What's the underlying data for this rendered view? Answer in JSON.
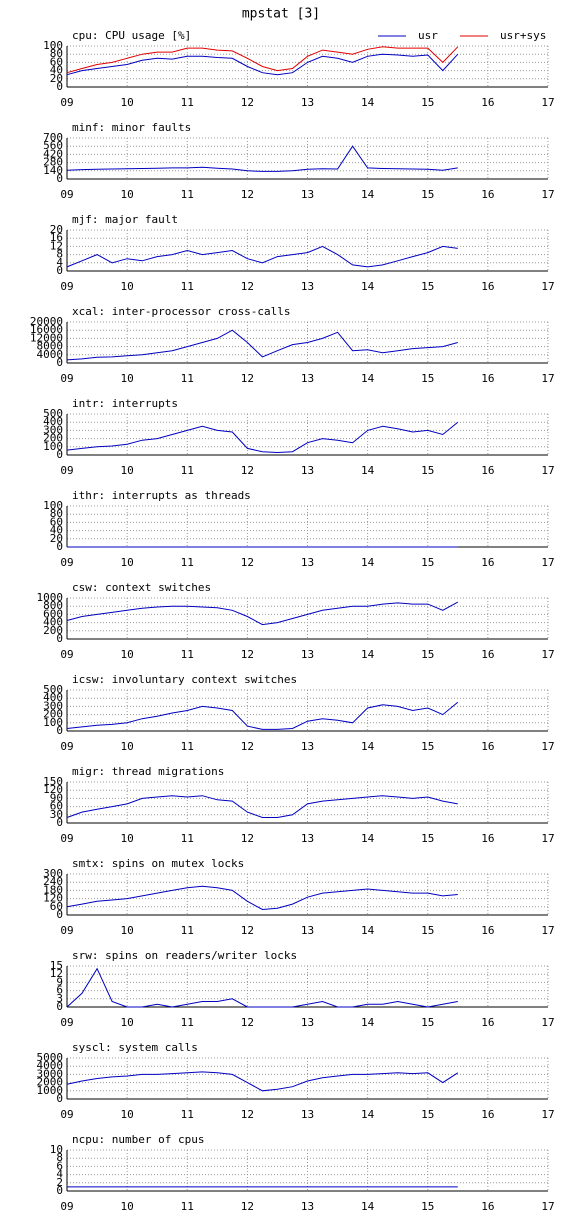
{
  "title": "mpstat [3]",
  "chart_data": [
    {
      "type": "line",
      "title": "cpu: CPU usage [%]",
      "legend": "upper right",
      "grid": true,
      "x": [
        9,
        9.25,
        9.5,
        9.75,
        10,
        10.25,
        10.5,
        10.75,
        11,
        11.25,
        11.5,
        11.75,
        12,
        12.25,
        12.5,
        12.75,
        13,
        13.25,
        13.5,
        13.75,
        14,
        14.25,
        14.5,
        14.75,
        15,
        15.25,
        15.5
      ],
      "series": [
        {
          "name": "usr",
          "color": "#0000c0",
          "values": [
            30,
            40,
            45,
            50,
            55,
            65,
            70,
            68,
            75,
            75,
            72,
            70,
            50,
            35,
            30,
            35,
            60,
            75,
            70,
            60,
            75,
            80,
            78,
            75,
            78,
            40,
            80
          ]
        },
        {
          "name": "usr+sys",
          "color": "#e00000",
          "values": [
            35,
            45,
            55,
            60,
            70,
            80,
            85,
            85,
            95,
            95,
            90,
            88,
            70,
            50,
            40,
            45,
            75,
            90,
            85,
            80,
            92,
            98,
            95,
            95,
            95,
            60,
            98
          ]
        }
      ],
      "xlim": [
        9,
        17
      ],
      "xticks": [
        {
          "value": 9,
          "label": "09"
        },
        10,
        11,
        12,
        13,
        14,
        15,
        16,
        17
      ],
      "ylim": [
        0,
        100
      ],
      "yticks": [
        0,
        20,
        40,
        60,
        80,
        100
      ]
    },
    {
      "type": "line",
      "title": "minf: minor faults",
      "grid": true,
      "color": "#0000c0",
      "x": [
        9,
        9.25,
        9.5,
        9.75,
        10,
        10.25,
        10.5,
        10.75,
        11,
        11.25,
        11.5,
        11.75,
        12,
        12.25,
        12.5,
        12.75,
        13,
        13.25,
        13.5,
        13.75,
        14,
        14.25,
        14.5,
        14.75,
        15,
        15.25,
        15.5
      ],
      "values": [
        150,
        160,
        165,
        170,
        175,
        180,
        185,
        190,
        190,
        200,
        185,
        170,
        140,
        130,
        130,
        140,
        165,
        175,
        170,
        560,
        190,
        180,
        175,
        170,
        165,
        150,
        190
      ],
      "xlim": [
        9,
        17
      ],
      "xticks": [
        {
          "value": 9,
          "label": "09"
        },
        10,
        11,
        12,
        13,
        14,
        15,
        16,
        17
      ],
      "ylim": [
        0,
        700
      ],
      "yticks": [
        0,
        140,
        280,
        420,
        560,
        700
      ]
    },
    {
      "type": "line",
      "title": "mjf: major fault",
      "grid": true,
      "color": "#0000c0",
      "x": [
        9,
        9.25,
        9.5,
        9.75,
        10,
        10.25,
        10.5,
        10.75,
        11,
        11.25,
        11.5,
        11.75,
        12,
        12.25,
        12.5,
        12.75,
        13,
        13.25,
        13.5,
        13.75,
        14,
        14.25,
        14.5,
        14.75,
        15,
        15.25,
        15.5
      ],
      "values": [
        2,
        5,
        8,
        4,
        6,
        5,
        7,
        8,
        10,
        8,
        9,
        10,
        6,
        4,
        7,
        8,
        9,
        12,
        8,
        3,
        2,
        3,
        5,
        7,
        9,
        12,
        11
      ],
      "xlim": [
        9,
        17
      ],
      "xticks": [
        {
          "value": 9,
          "label": "09"
        },
        10,
        11,
        12,
        13,
        14,
        15,
        16,
        17
      ],
      "ylim": [
        0,
        20
      ],
      "yticks": [
        0,
        4,
        8,
        12,
        16,
        20
      ]
    },
    {
      "type": "line",
      "title": "xcal: inter-processor cross-calls",
      "grid": true,
      "color": "#0000c0",
      "x": [
        9,
        9.25,
        9.5,
        9.75,
        10,
        10.25,
        10.5,
        10.75,
        11,
        11.25,
        11.5,
        11.75,
        12,
        12.25,
        12.5,
        12.75,
        13,
        13.25,
        13.5,
        13.75,
        14,
        14.25,
        14.5,
        14.75,
        15,
        15.25,
        15.5
      ],
      "values": [
        1500,
        2000,
        2800,
        3000,
        3500,
        4000,
        5000,
        6000,
        8000,
        10000,
        12000,
        16000,
        10000,
        3000,
        6000,
        9000,
        10000,
        12000,
        15000,
        6000,
        6500,
        5000,
        6000,
        7000,
        7500,
        8000,
        10000
      ],
      "xlim": [
        9,
        17
      ],
      "xticks": [
        {
          "value": 9,
          "label": "09"
        },
        10,
        11,
        12,
        13,
        14,
        15,
        16,
        17
      ],
      "ylim": [
        0,
        20000
      ],
      "yticks": [
        0,
        4000,
        8000,
        12000,
        16000,
        20000
      ]
    },
    {
      "type": "line",
      "title": "intr: interrupts",
      "grid": true,
      "color": "#0000c0",
      "x": [
        9,
        9.25,
        9.5,
        9.75,
        10,
        10.25,
        10.5,
        10.75,
        11,
        11.25,
        11.5,
        11.75,
        12,
        12.25,
        12.5,
        12.75,
        13,
        13.25,
        13.5,
        13.75,
        14,
        14.25,
        14.5,
        14.75,
        15,
        15.25,
        15.5
      ],
      "values": [
        60,
        80,
        100,
        110,
        130,
        180,
        200,
        250,
        300,
        350,
        300,
        280,
        80,
        40,
        30,
        40,
        150,
        200,
        180,
        150,
        300,
        350,
        320,
        280,
        300,
        250,
        400
      ],
      "xlim": [
        9,
        17
      ],
      "xticks": [
        {
          "value": 9,
          "label": "09"
        },
        10,
        11,
        12,
        13,
        14,
        15,
        16,
        17
      ],
      "ylim": [
        0,
        500
      ],
      "yticks": [
        0,
        100,
        200,
        300,
        400,
        500
      ]
    },
    {
      "type": "line",
      "title": "ithr: interrupts as threads",
      "grid": true,
      "color": "#0000c0",
      "x": [
        9,
        9.25,
        9.5,
        9.75,
        10,
        10.25,
        10.5,
        10.75,
        11,
        11.25,
        11.5,
        11.75,
        12,
        12.25,
        12.5,
        12.75,
        13,
        13.25,
        13.5,
        13.75,
        14,
        14.25,
        14.5,
        14.75,
        15,
        15.25,
        15.5
      ],
      "values": [
        0,
        0,
        0,
        0,
        0,
        0,
        0,
        0,
        0,
        0,
        0,
        0,
        0,
        0,
        0,
        0,
        0,
        0,
        0,
        0,
        0,
        0,
        0,
        0,
        0,
        0,
        0
      ],
      "xlim": [
        9,
        17
      ],
      "xticks": [
        {
          "value": 9,
          "label": "09"
        },
        10,
        11,
        12,
        13,
        14,
        15,
        16,
        17
      ],
      "ylim": [
        0,
        100
      ],
      "yticks": [
        0,
        20,
        40,
        60,
        80,
        100
      ]
    },
    {
      "type": "line",
      "title": "csw: context switches",
      "grid": true,
      "color": "#0000c0",
      "x": [
        9,
        9.25,
        9.5,
        9.75,
        10,
        10.25,
        10.5,
        10.75,
        11,
        11.25,
        11.5,
        11.75,
        12,
        12.25,
        12.5,
        12.75,
        13,
        13.25,
        13.5,
        13.75,
        14,
        14.25,
        14.5,
        14.75,
        15,
        15.25,
        15.5
      ],
      "values": [
        450,
        550,
        600,
        650,
        700,
        750,
        780,
        800,
        800,
        780,
        760,
        700,
        550,
        350,
        400,
        500,
        600,
        700,
        750,
        800,
        800,
        850,
        880,
        850,
        850,
        700,
        900
      ],
      "xlim": [
        9,
        17
      ],
      "xticks": [
        {
          "value": 9,
          "label": "09"
        },
        10,
        11,
        12,
        13,
        14,
        15,
        16,
        17
      ],
      "ylim": [
        0,
        1000
      ],
      "yticks": [
        0,
        200,
        400,
        600,
        800,
        1000
      ]
    },
    {
      "type": "line",
      "title": "icsw: involuntary context switches",
      "grid": true,
      "color": "#0000c0",
      "x": [
        9,
        9.25,
        9.5,
        9.75,
        10,
        10.25,
        10.5,
        10.75,
        11,
        11.25,
        11.5,
        11.75,
        12,
        12.25,
        12.5,
        12.75,
        13,
        13.25,
        13.5,
        13.75,
        14,
        14.25,
        14.5,
        14.75,
        15,
        15.25,
        15.5
      ],
      "values": [
        30,
        50,
        70,
        80,
        100,
        150,
        180,
        220,
        250,
        300,
        280,
        250,
        60,
        20,
        20,
        30,
        120,
        150,
        130,
        100,
        280,
        320,
        300,
        250,
        280,
        200,
        350
      ],
      "xlim": [
        9,
        17
      ],
      "xticks": [
        {
          "value": 9,
          "label": "09"
        },
        10,
        11,
        12,
        13,
        14,
        15,
        16,
        17
      ],
      "ylim": [
        0,
        500
      ],
      "yticks": [
        0,
        100,
        200,
        300,
        400,
        500
      ]
    },
    {
      "type": "line",
      "title": "migr: thread migrations",
      "grid": true,
      "color": "#0000c0",
      "x": [
        9,
        9.25,
        9.5,
        9.75,
        10,
        10.25,
        10.5,
        10.75,
        11,
        11.25,
        11.5,
        11.75,
        12,
        12.25,
        12.5,
        12.75,
        13,
        13.25,
        13.5,
        13.75,
        14,
        14.25,
        14.5,
        14.75,
        15,
        15.25,
        15.5
      ],
      "values": [
        20,
        40,
        50,
        60,
        70,
        90,
        95,
        100,
        95,
        100,
        85,
        80,
        40,
        20,
        20,
        30,
        70,
        80,
        85,
        90,
        95,
        100,
        95,
        90,
        95,
        80,
        70
      ],
      "xlim": [
        9,
        17
      ],
      "xticks": [
        {
          "value": 9,
          "label": "09"
        },
        10,
        11,
        12,
        13,
        14,
        15,
        16,
        17
      ],
      "ylim": [
        0,
        150
      ],
      "yticks": [
        0,
        30,
        60,
        90,
        120,
        150
      ]
    },
    {
      "type": "line",
      "title": "smtx: spins on mutex locks",
      "grid": true,
      "color": "#0000c0",
      "x": [
        9,
        9.25,
        9.5,
        9.75,
        10,
        10.25,
        10.5,
        10.75,
        11,
        11.25,
        11.5,
        11.75,
        12,
        12.25,
        12.5,
        12.75,
        13,
        13.25,
        13.5,
        13.75,
        14,
        14.25,
        14.5,
        14.75,
        15,
        15.25,
        15.5
      ],
      "values": [
        60,
        80,
        100,
        110,
        120,
        140,
        160,
        180,
        200,
        210,
        200,
        180,
        100,
        40,
        50,
        80,
        130,
        160,
        170,
        180,
        190,
        180,
        170,
        160,
        160,
        140,
        150
      ],
      "xlim": [
        9,
        17
      ],
      "xticks": [
        {
          "value": 9,
          "label": "09"
        },
        10,
        11,
        12,
        13,
        14,
        15,
        16,
        17
      ],
      "ylim": [
        0,
        300
      ],
      "yticks": [
        0,
        60,
        120,
        180,
        240,
        300
      ]
    },
    {
      "type": "line",
      "title": "srw: spins on readers/writer locks",
      "grid": true,
      "color": "#0000c0",
      "x": [
        9,
        9.25,
        9.5,
        9.75,
        10,
        10.25,
        10.5,
        10.75,
        11,
        11.25,
        11.5,
        11.75,
        12,
        12.25,
        12.5,
        12.75,
        13,
        13.25,
        13.5,
        13.75,
        14,
        14.25,
        14.5,
        14.75,
        15,
        15.25,
        15.5
      ],
      "values": [
        0,
        5,
        14,
        2,
        0,
        0,
        1,
        0,
        1,
        2,
        2,
        3,
        0,
        0,
        0,
        0,
        1,
        2,
        0,
        0,
        1,
        1,
        2,
        1,
        0,
        1,
        2
      ],
      "xlim": [
        9,
        17
      ],
      "xticks": [
        {
          "value": 9,
          "label": "09"
        },
        10,
        11,
        12,
        13,
        14,
        15,
        16,
        17
      ],
      "ylim": [
        0,
        15
      ],
      "yticks": [
        0,
        3,
        6,
        9,
        12,
        15
      ]
    },
    {
      "type": "line",
      "title": "syscl: system calls",
      "grid": true,
      "color": "#0000c0",
      "x": [
        9,
        9.25,
        9.5,
        9.75,
        10,
        10.25,
        10.5,
        10.75,
        11,
        11.25,
        11.5,
        11.75,
        12,
        12.25,
        12.5,
        12.75,
        13,
        13.25,
        13.5,
        13.75,
        14,
        14.25,
        14.5,
        14.75,
        15,
        15.25,
        15.5
      ],
      "values": [
        1800,
        2200,
        2500,
        2700,
        2800,
        3000,
        3000,
        3100,
        3200,
        3300,
        3200,
        3000,
        2000,
        1000,
        1200,
        1500,
        2200,
        2600,
        2800,
        3000,
        3000,
        3100,
        3200,
        3100,
        3200,
        2000,
        3200
      ],
      "xlim": [
        9,
        17
      ],
      "xticks": [
        {
          "value": 9,
          "label": "09"
        },
        10,
        11,
        12,
        13,
        14,
        15,
        16,
        17
      ],
      "ylim": [
        0,
        5000
      ],
      "yticks": [
        0,
        1000,
        2000,
        3000,
        4000,
        5000
      ]
    },
    {
      "type": "line",
      "title": "ncpu: number of cpus",
      "grid": true,
      "color": "#0000c0",
      "x": [
        9,
        9.25,
        9.5,
        9.75,
        10,
        10.25,
        10.5,
        10.75,
        11,
        11.25,
        11.5,
        11.75,
        12,
        12.25,
        12.5,
        12.75,
        13,
        13.25,
        13.5,
        13.75,
        14,
        14.25,
        14.5,
        14.75,
        15,
        15.25,
        15.5
      ],
      "values": [
        1,
        1,
        1,
        1,
        1,
        1,
        1,
        1,
        1,
        1,
        1,
        1,
        1,
        1,
        1,
        1,
        1,
        1,
        1,
        1,
        1,
        1,
        1,
        1,
        1,
        1,
        1
      ],
      "xlim": [
        9,
        17
      ],
      "xticks": [
        {
          "value": 9,
          "label": "09"
        },
        10,
        11,
        12,
        13,
        14,
        15,
        16,
        17
      ],
      "ylim": [
        0,
        10
      ],
      "yticks": [
        0,
        2,
        4,
        6,
        8,
        10
      ]
    }
  ]
}
